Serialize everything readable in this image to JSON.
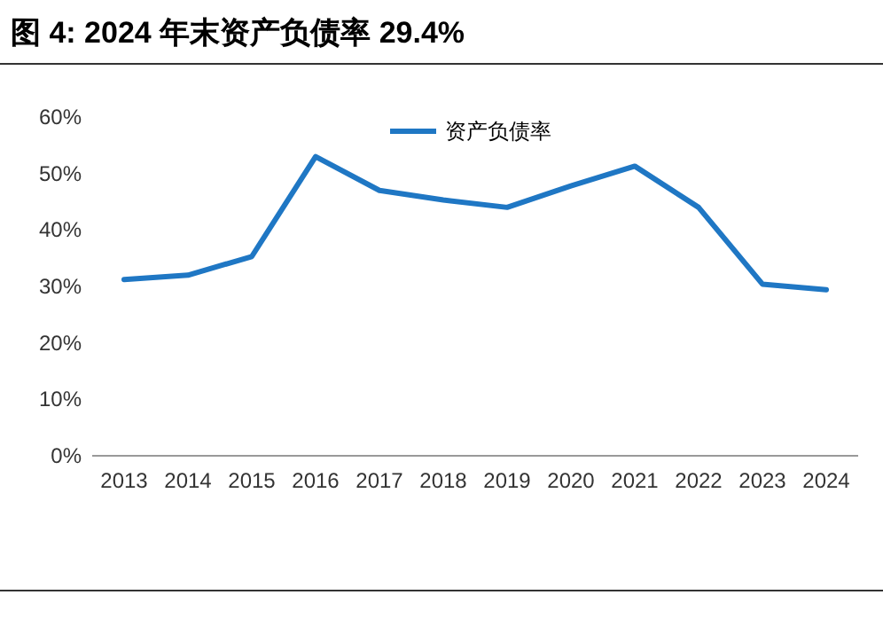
{
  "chart_data": {
    "type": "line",
    "title": "图 4:    2024 年末资产负债率 29.4%",
    "categories": [
      "2013",
      "2014",
      "2015",
      "2016",
      "2017",
      "2018",
      "2019",
      "2020",
      "2021",
      "2022",
      "2023",
      "2024"
    ],
    "series": [
      {
        "name": "资产负债率",
        "color": "#1f77c4",
        "values": [
          31.2,
          32.0,
          35.3,
          53.0,
          47.0,
          45.3,
          44.0,
          47.8,
          51.3,
          44.0,
          30.4,
          29.4
        ]
      }
    ],
    "ylim": [
      0,
      60
    ],
    "yticks": [
      {
        "value": 0,
        "label": "0%"
      },
      {
        "value": 10,
        "label": "10%"
      },
      {
        "value": 20,
        "label": "20%"
      },
      {
        "value": 30,
        "label": "30%"
      },
      {
        "value": 40,
        "label": "40%"
      },
      {
        "value": 50,
        "label": "50%"
      },
      {
        "value": 60,
        "label": "60%"
      }
    ],
    "legend": "top",
    "grid": false
  }
}
